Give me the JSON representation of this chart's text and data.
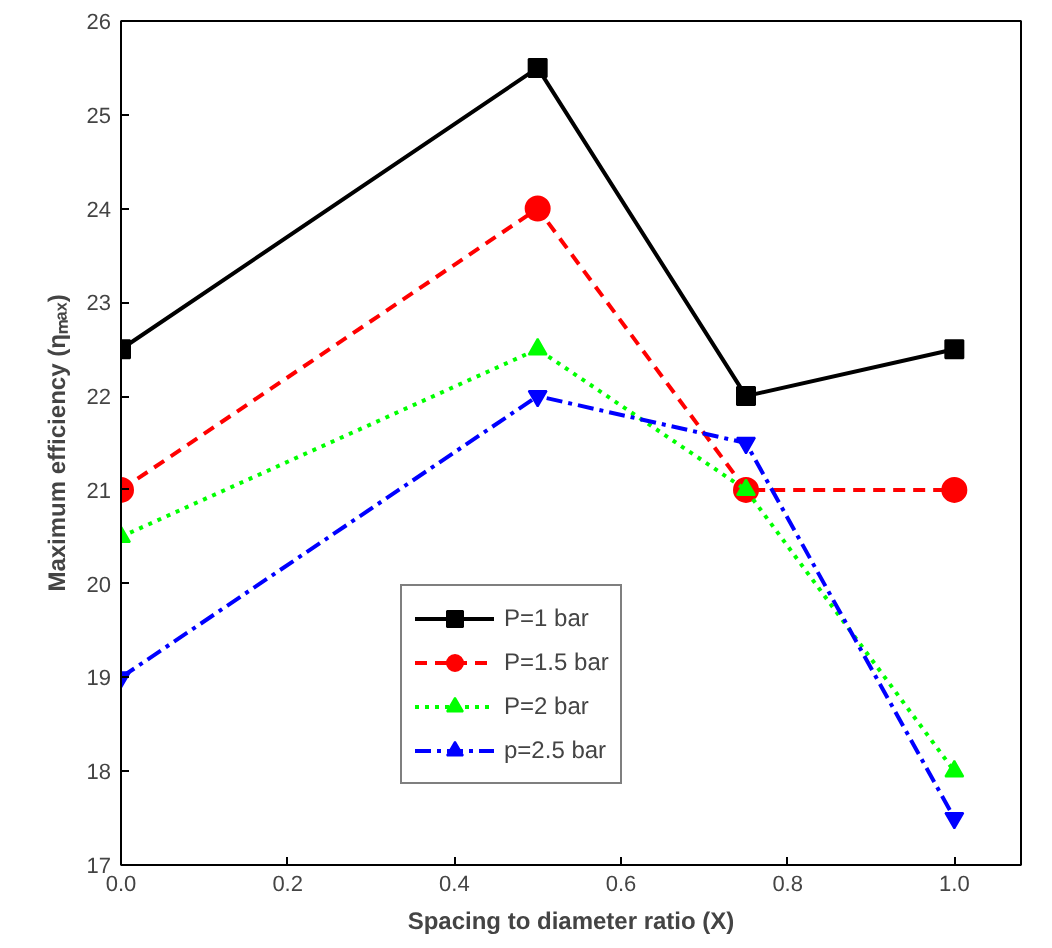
{
  "chart_data": {
    "type": "line",
    "xlabel": "Spacing to diameter ratio (X)",
    "ylabel": "Maximum efficiency (ηₘₐₓ)",
    "x": [
      0,
      0.5,
      0.75,
      1.0
    ],
    "series": [
      {
        "name": "P=1 bar",
        "color": "#000000",
        "values": [
          22.5,
          25.5,
          22,
          22.5
        ],
        "marker": "square",
        "line_style": "solid"
      },
      {
        "name": "P=1.5 bar",
        "color": "#ff0000",
        "values": [
          21,
          24,
          21,
          21
        ],
        "marker": "circle",
        "line_style": "dashed"
      },
      {
        "name": "P=2 bar",
        "color": "#00ff00",
        "values": [
          20.5,
          22.5,
          21,
          18
        ],
        "marker": "triangle",
        "line_style": "dotted"
      },
      {
        "name": "p=2.5 bar",
        "color": "#0000ff",
        "values": [
          19,
          22,
          21.5,
          17.5
        ],
        "marker": "triangle",
        "line_style": "dashdot"
      }
    ],
    "xlim": [
      0,
      1.08
    ],
    "ylim": [
      17,
      26
    ],
    "xticks": [
      {
        "value": 0,
        "label": "0.0"
      },
      0.2,
      0.4,
      0.6,
      0.8,
      {
        "value": 1,
        "label": "1.0"
      }
    ],
    "yticks": [
      17,
      18,
      19,
      20,
      21,
      22,
      23,
      24,
      25,
      26
    ],
    "grid": false,
    "legend": "bottom"
  }
}
